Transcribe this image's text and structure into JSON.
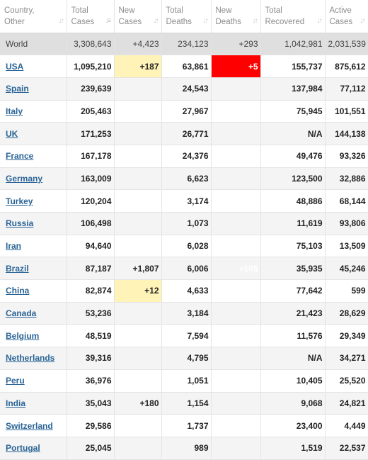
{
  "table": {
    "columns": [
      "Country,\nOther",
      "Total\nCases",
      "New\nCases",
      "Total\nDeaths",
      "New\nDeaths",
      "Total\nRecovered",
      "Active\nCases"
    ],
    "world": {
      "country": "World",
      "total_cases": "3,308,643",
      "new_cases": "+4,423",
      "total_deaths": "234,123",
      "new_deaths": "+293",
      "total_recovered": "1,042,981",
      "active_cases": "2,031,539"
    },
    "rows": [
      {
        "country": "USA",
        "total_cases": "1,095,210",
        "new_cases": "+187",
        "total_deaths": "63,861",
        "new_deaths": "+5",
        "total_recovered": "155,737",
        "active_cases": "875,612"
      },
      {
        "country": "Spain",
        "total_cases": "239,639",
        "new_cases": "",
        "total_deaths": "24,543",
        "new_deaths": "",
        "total_recovered": "137,984",
        "active_cases": "77,112"
      },
      {
        "country": "Italy",
        "total_cases": "205,463",
        "new_cases": "",
        "total_deaths": "27,967",
        "new_deaths": "",
        "total_recovered": "75,945",
        "active_cases": "101,551"
      },
      {
        "country": "UK",
        "total_cases": "171,253",
        "new_cases": "",
        "total_deaths": "26,771",
        "new_deaths": "",
        "total_recovered": "N/A",
        "active_cases": "144,138"
      },
      {
        "country": "France",
        "total_cases": "167,178",
        "new_cases": "",
        "total_deaths": "24,376",
        "new_deaths": "",
        "total_recovered": "49,476",
        "active_cases": "93,326"
      },
      {
        "country": "Germany",
        "total_cases": "163,009",
        "new_cases": "",
        "total_deaths": "6,623",
        "new_deaths": "",
        "total_recovered": "123,500",
        "active_cases": "32,886"
      },
      {
        "country": "Turkey",
        "total_cases": "120,204",
        "new_cases": "",
        "total_deaths": "3,174",
        "new_deaths": "",
        "total_recovered": "48,886",
        "active_cases": "68,144"
      },
      {
        "country": "Russia",
        "total_cases": "106,498",
        "new_cases": "",
        "total_deaths": "1,073",
        "new_deaths": "",
        "total_recovered": "11,619",
        "active_cases": "93,806"
      },
      {
        "country": "Iran",
        "total_cases": "94,640",
        "new_cases": "",
        "total_deaths": "6,028",
        "new_deaths": "",
        "total_recovered": "75,103",
        "active_cases": "13,509"
      },
      {
        "country": "Brazil",
        "total_cases": "87,187",
        "new_cases": "+1,807",
        "total_deaths": "6,006",
        "new_deaths": "+105",
        "total_recovered": "35,935",
        "active_cases": "45,246"
      },
      {
        "country": "China",
        "total_cases": "82,874",
        "new_cases": "+12",
        "total_deaths": "4,633",
        "new_deaths": "",
        "total_recovered": "77,642",
        "active_cases": "599"
      },
      {
        "country": "Canada",
        "total_cases": "53,236",
        "new_cases": "",
        "total_deaths": "3,184",
        "new_deaths": "",
        "total_recovered": "21,423",
        "active_cases": "28,629"
      },
      {
        "country": "Belgium",
        "total_cases": "48,519",
        "new_cases": "",
        "total_deaths": "7,594",
        "new_deaths": "",
        "total_recovered": "11,576",
        "active_cases": "29,349"
      },
      {
        "country": "Netherlands",
        "total_cases": "39,316",
        "new_cases": "",
        "total_deaths": "4,795",
        "new_deaths": "",
        "total_recovered": "N/A",
        "active_cases": "34,271"
      },
      {
        "country": "Peru",
        "total_cases": "36,976",
        "new_cases": "",
        "total_deaths": "1,051",
        "new_deaths": "",
        "total_recovered": "10,405",
        "active_cases": "25,520"
      },
      {
        "country": "India",
        "total_cases": "35,043",
        "new_cases": "+180",
        "total_deaths": "1,154",
        "new_deaths": "",
        "total_recovered": "9,068",
        "active_cases": "24,821"
      },
      {
        "country": "Switzerland",
        "total_cases": "29,586",
        "new_cases": "",
        "total_deaths": "1,737",
        "new_deaths": "",
        "total_recovered": "23,400",
        "active_cases": "4,449"
      },
      {
        "country": "Portugal",
        "total_cases": "25,045",
        "new_cases": "",
        "total_deaths": "989",
        "new_deaths": "",
        "total_recovered": "1,519",
        "active_cases": "22,537"
      }
    ]
  },
  "icons": {
    "sort": "sort-arrows-icon",
    "sort_active": "sort-descending-icon"
  },
  "colors": {
    "link": "#2a6496",
    "new_cases_bg": "#fff3b8",
    "new_deaths_bg": "#ff0000",
    "world_bg": "#dfdfdf"
  }
}
